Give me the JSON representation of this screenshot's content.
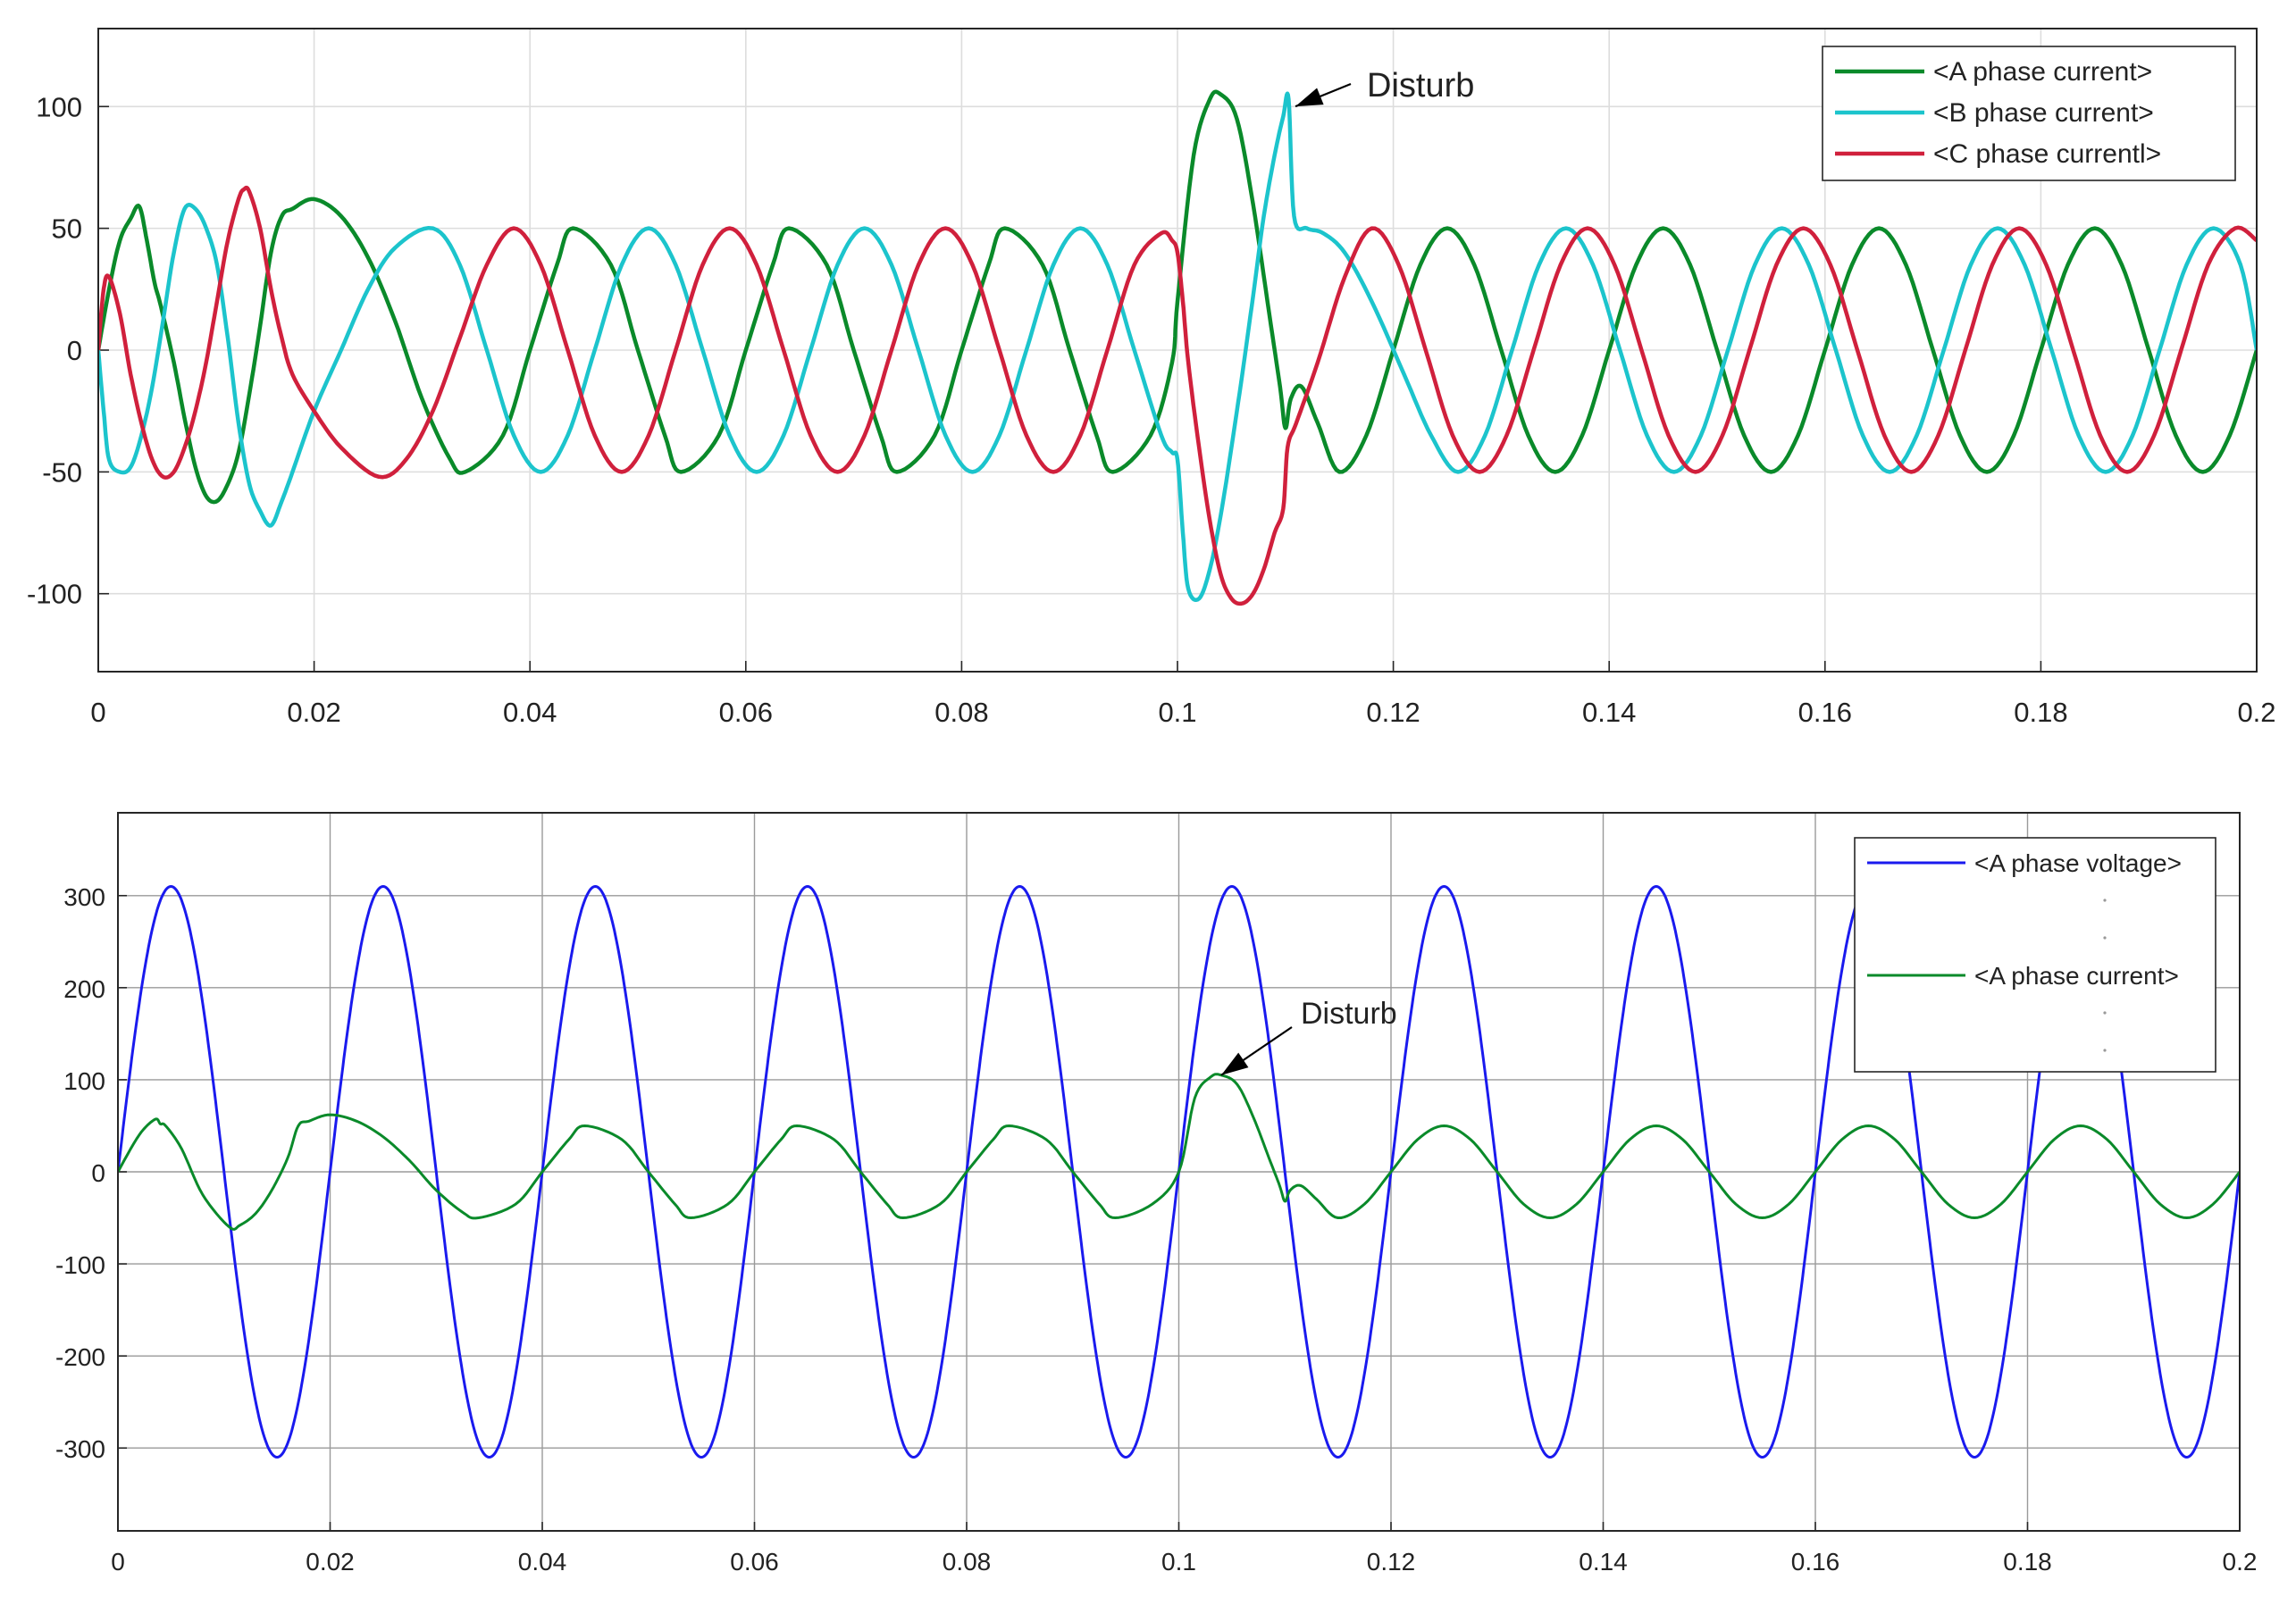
{
  "chart_data": [
    {
      "type": "line",
      "title": "",
      "xlabel": "",
      "ylabel": "",
      "xlim": [
        0,
        0.2
      ],
      "ylim": [
        -132,
        132
      ],
      "xticks": [
        "0",
        "0.02",
        "0.04",
        "0.06",
        "0.08",
        "0.1",
        "0.12",
        "0.14",
        "0.16",
        "0.18",
        "0.2"
      ],
      "yticks": [
        "100",
        "50",
        "0",
        "-50",
        "-100"
      ],
      "grid": true,
      "legend_position": "top-right",
      "series": [
        {
          "name": "<A phase current>",
          "color": "#0a8a2a",
          "x": [
            0,
            0.001,
            0.002,
            0.003,
            0.0038,
            0.0045,
            0.0052,
            0.0058,
            0.007,
            0.008,
            0.009,
            0.01,
            0.011,
            0.012,
            0.013,
            0.014,
            0.015,
            0.016,
            0.017,
            0.018,
            0.02,
            0.0225,
            0.025,
            0.0275,
            0.03,
            0.0325,
            0.034,
            0.0375,
            0.04,
            0.0425,
            0.044,
            0.0475,
            0.05,
            0.0525,
            0.054,
            0.0575,
            0.06,
            0.0625,
            0.064,
            0.0675,
            0.07,
            0.0725,
            0.074,
            0.0775,
            0.08,
            0.0825,
            0.084,
            0.0875,
            0.09,
            0.0925,
            0.094,
            0.0975,
            0.0995,
            0.1,
            0.1015,
            0.103,
            0.104,
            0.1055,
            0.107,
            0.1085,
            0.1095,
            0.11,
            0.1105,
            0.1115,
            0.113,
            0.115,
            0.1175,
            0.12,
            0.1225,
            0.125,
            0.1275,
            0.13,
            0.1325,
            0.135,
            0.1375,
            0.14,
            0.1425,
            0.145,
            0.1475,
            0.15,
            0.1525,
            0.155,
            0.1575,
            0.16,
            0.1625,
            0.165,
            0.1675,
            0.17,
            0.1725,
            0.175,
            0.1775,
            0.18,
            0.1825,
            0.185,
            0.1875,
            0.19,
            0.1925,
            0.195,
            0.1975,
            0.2
          ],
          "y": [
            0,
            25,
            45,
            54,
            59,
            45,
            28,
            18,
            -5,
            -28,
            -48,
            -60,
            -62,
            -55,
            -42,
            -18,
            10,
            40,
            55,
            58,
            62,
            55,
            38,
            12,
            -20,
            -44,
            -50,
            -35,
            0,
            35,
            50,
            35,
            0,
            -35,
            -50,
            -35,
            0,
            35,
            50,
            35,
            0,
            -35,
            -50,
            -35,
            0,
            35,
            50,
            35,
            0,
            -35,
            -50,
            -35,
            -5,
            20,
            80,
            103,
            105,
            95,
            60,
            15,
            -15,
            -32,
            -20,
            -15,
            -30,
            -50,
            -35,
            0,
            35,
            50,
            35,
            0,
            -35,
            -50,
            -35,
            0,
            35,
            50,
            35,
            0,
            -35,
            -50,
            -35,
            0,
            35,
            50,
            35,
            0,
            -35,
            -50,
            -35,
            0,
            35,
            50,
            35,
            0,
            -35,
            -50,
            -35,
            0
          ]
        },
        {
          "name": "<B phase current>",
          "color": "#1cc4cc",
          "x": [
            0,
            0.0005,
            0.001,
            0.002,
            0.003,
            0.004,
            0.005,
            0.006,
            0.007,
            0.008,
            0.009,
            0.01,
            0.011,
            0.012,
            0.013,
            0.014,
            0.015,
            0.016,
            0.017,
            0.018,
            0.02,
            0.0225,
            0.025,
            0.0275,
            0.031,
            0.0335,
            0.036,
            0.0385,
            0.041,
            0.0435,
            0.046,
            0.0485,
            0.051,
            0.0535,
            0.056,
            0.0585,
            0.061,
            0.0635,
            0.066,
            0.0685,
            0.071,
            0.0735,
            0.076,
            0.0785,
            0.081,
            0.0835,
            0.086,
            0.0885,
            0.091,
            0.0935,
            0.096,
            0.0985,
            0.0995,
            0.1,
            0.1005,
            0.101,
            0.102,
            0.103,
            0.104,
            0.105,
            0.106,
            0.107,
            0.108,
            0.109,
            0.1098,
            0.1103,
            0.1108,
            0.112,
            0.1135,
            0.1155,
            0.118,
            0.121,
            0.1235,
            0.126,
            0.1285,
            0.131,
            0.1335,
            0.136,
            0.1385,
            0.141,
            0.1435,
            0.146,
            0.1485,
            0.151,
            0.1535,
            0.156,
            0.1585,
            0.161,
            0.1635,
            0.166,
            0.1685,
            0.171,
            0.1735,
            0.176,
            0.1785,
            0.181,
            0.1835,
            0.186,
            0.1885,
            0.191,
            0.1935,
            0.196,
            0.1985,
            0.2
          ],
          "y": [
            0,
            -25,
            -45,
            -50,
            -48,
            -35,
            -15,
            12,
            40,
            58,
            58,
            50,
            35,
            5,
            -30,
            -55,
            -66,
            -72,
            -62,
            -50,
            -25,
            0,
            25,
            42,
            50,
            35,
            0,
            -35,
            -50,
            -35,
            0,
            35,
            50,
            35,
            0,
            -35,
            -50,
            -35,
            0,
            35,
            50,
            35,
            0,
            -35,
            -50,
            -35,
            0,
            35,
            50,
            35,
            0,
            -35,
            -42,
            -45,
            -75,
            -98,
            -102,
            -90,
            -68,
            -40,
            -10,
            22,
            55,
            80,
            96,
            103,
            55,
            50,
            48,
            40,
            20,
            -10,
            -35,
            -50,
            -35,
            0,
            35,
            50,
            35,
            0,
            -35,
            -50,
            -35,
            0,
            35,
            50,
            35,
            0,
            -35,
            -50,
            -35,
            0,
            35,
            50,
            35,
            0,
            -35,
            -50,
            -35,
            0,
            35,
            50,
            35,
            0
          ]
        },
        {
          "name": "<C phase currentl>",
          "color": "#d0203c",
          "x": [
            0,
            0.0005,
            0.001,
            0.002,
            0.003,
            0.004,
            0.005,
            0.006,
            0.007,
            0.008,
            0.009,
            0.01,
            0.011,
            0.012,
            0.013,
            0.0135,
            0.014,
            0.015,
            0.016,
            0.017,
            0.018,
            0.02,
            0.0225,
            0.026,
            0.0285,
            0.031,
            0.0335,
            0.036,
            0.0385,
            0.041,
            0.0435,
            0.046,
            0.0485,
            0.051,
            0.0535,
            0.056,
            0.0585,
            0.061,
            0.0635,
            0.066,
            0.0685,
            0.071,
            0.0735,
            0.076,
            0.0785,
            0.081,
            0.0835,
            0.086,
            0.0885,
            0.091,
            0.0935,
            0.096,
            0.0985,
            0.0995,
            0.1,
            0.1005,
            0.101,
            0.102,
            0.103,
            0.104,
            0.105,
            0.106,
            0.107,
            0.108,
            0.109,
            0.1098,
            0.1102,
            0.111,
            0.113,
            0.1155,
            0.118,
            0.1205,
            0.123,
            0.1255,
            0.128,
            0.1305,
            0.133,
            0.1355,
            0.138,
            0.1405,
            0.143,
            0.1455,
            0.148,
            0.1505,
            0.153,
            0.1555,
            0.158,
            0.1605,
            0.163,
            0.1655,
            0.168,
            0.1705,
            0.173,
            0.1755,
            0.178,
            0.1805,
            0.183,
            0.1855,
            0.188,
            0.1905,
            0.193,
            0.1955,
            0.198,
            0.2
          ],
          "y": [
            0,
            25,
            30,
            15,
            -10,
            -30,
            -45,
            -52,
            -50,
            -40,
            -25,
            -5,
            20,
            45,
            62,
            66,
            65,
            50,
            25,
            5,
            -10,
            -25,
            -40,
            -52,
            -45,
            -25,
            5,
            35,
            50,
            35,
            0,
            -35,
            -50,
            -35,
            0,
            35,
            50,
            35,
            0,
            -35,
            -50,
            -35,
            0,
            35,
            50,
            35,
            0,
            -35,
            -50,
            -35,
            0,
            35,
            48,
            45,
            40,
            20,
            -5,
            -40,
            -70,
            -92,
            -102,
            -104,
            -100,
            -90,
            -75,
            -65,
            -40,
            -30,
            -5,
            30,
            50,
            35,
            0,
            -35,
            -50,
            -35,
            0,
            35,
            50,
            35,
            0,
            -35,
            -50,
            -35,
            0,
            35,
            50,
            35,
            0,
            -35,
            -50,
            -35,
            0,
            35,
            50,
            35,
            0,
            -35,
            -50,
            -35,
            0,
            35,
            50,
            45
          ]
        }
      ],
      "annotations": [
        {
          "text": "Disturb",
          "x": 0.1106,
          "y": 103
        }
      ]
    },
    {
      "type": "line",
      "title": "",
      "xlabel": "",
      "ylabel": "",
      "xlim": [
        0,
        0.2
      ],
      "ylim": [
        -390,
        390
      ],
      "xticks": [
        "0",
        "0.02",
        "0.04",
        "0.06",
        "0.08",
        "0.1",
        "0.12",
        "0.14",
        "0.16",
        "0.18",
        "0.2"
      ],
      "yticks": [
        "300",
        "200",
        "100",
        "0",
        "-100",
        "-200",
        "-300"
      ],
      "grid": true,
      "legend_position": "top-right",
      "series": [
        {
          "name": "<A phase voltage>",
          "color": "#1a1aee",
          "function": "310*sin(2*pi*50*t)",
          "amplitude": 310,
          "frequency": 50
        },
        {
          "name": "<A phase current>",
          "color": "#0a8a2a",
          "x": [
            0,
            0.002,
            0.0035,
            0.004,
            0.0045,
            0.006,
            0.008,
            0.0105,
            0.0115,
            0.013,
            0.0145,
            0.016,
            0.017,
            0.018,
            0.02,
            0.0225,
            0.025,
            0.0275,
            0.03,
            0.0325,
            0.034,
            0.0375,
            0.04,
            0.0425,
            0.044,
            0.0475,
            0.05,
            0.0525,
            0.054,
            0.0575,
            0.06,
            0.0625,
            0.064,
            0.0675,
            0.07,
            0.0725,
            0.074,
            0.0775,
            0.08,
            0.0825,
            0.084,
            0.0875,
            0.09,
            0.0925,
            0.094,
            0.0975,
            0.1,
            0.1015,
            0.103,
            0.104,
            0.1055,
            0.107,
            0.1085,
            0.1095,
            0.11,
            0.1105,
            0.1115,
            0.113,
            0.115,
            0.1175,
            0.12,
            0.1225,
            0.125,
            0.1275,
            0.13,
            0.1325,
            0.135,
            0.1375,
            0.14,
            0.1425,
            0.145,
            0.1475,
            0.15,
            0.1525,
            0.155,
            0.1575,
            0.16,
            0.1625,
            0.165,
            0.1675,
            0.17,
            0.1725,
            0.175,
            0.1775,
            0.18,
            0.1825,
            0.185,
            0.1875,
            0.19,
            0.1925,
            0.195,
            0.1975,
            0.2
          ],
          "y": [
            0,
            40,
            57,
            52,
            50,
            25,
            -25,
            -60,
            -58,
            -45,
            -20,
            15,
            50,
            55,
            62,
            55,
            38,
            12,
            -20,
            -44,
            -50,
            -35,
            0,
            35,
            50,
            35,
            0,
            -35,
            -50,
            -35,
            0,
            35,
            50,
            35,
            0,
            -35,
            -50,
            -35,
            0,
            35,
            50,
            35,
            0,
            -35,
            -50,
            -35,
            0,
            80,
            103,
            105,
            95,
            60,
            15,
            -15,
            -32,
            -20,
            -15,
            -30,
            -50,
            -35,
            0,
            35,
            50,
            35,
            0,
            -35,
            -50,
            -35,
            0,
            35,
            50,
            35,
            0,
            -35,
            -50,
            -35,
            0,
            35,
            50,
            35,
            0,
            -35,
            -50,
            -35,
            0,
            35,
            50,
            35,
            0,
            -35,
            -50,
            -35,
            0
          ]
        }
      ],
      "annotations": [
        {
          "text": "Disturb",
          "x": 0.104,
          "y": 105
        }
      ]
    }
  ]
}
